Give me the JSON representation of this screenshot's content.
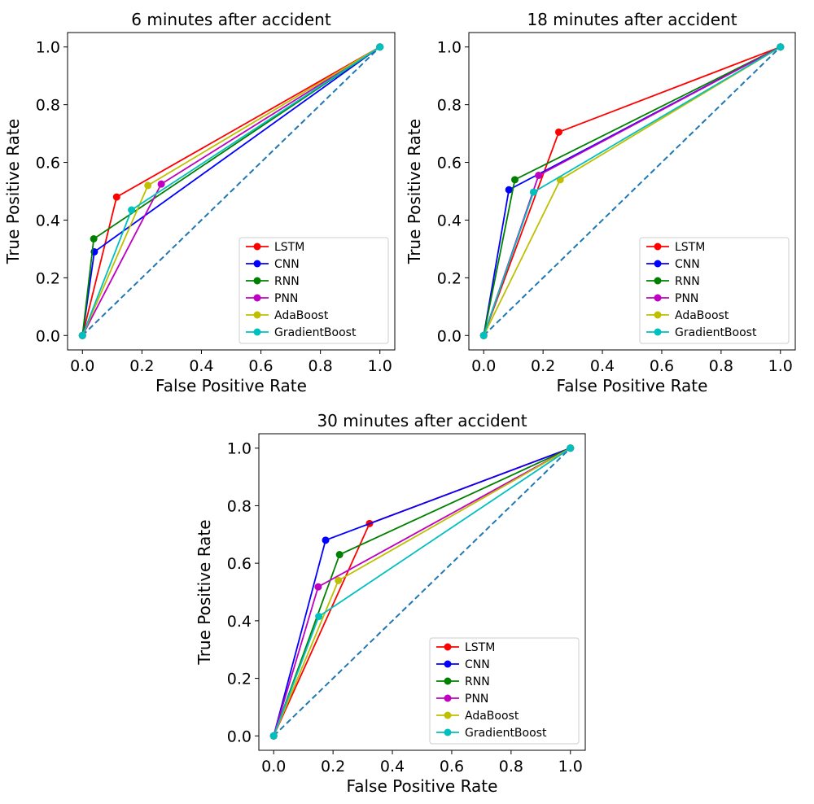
{
  "figure": {
    "background": "#ffffff"
  },
  "chart_data": [
    {
      "type": "line",
      "title": "6 minutes after accident",
      "xlabel": "False Positive Rate",
      "ylabel": "True Positive Rate",
      "xlim": [
        -0.05,
        1.05
      ],
      "ylim": [
        -0.05,
        1.05
      ],
      "xticks": [
        "0.0",
        "0.2",
        "0.4",
        "0.6",
        "0.8",
        "1.0"
      ],
      "yticks": [
        "0.0",
        "0.2",
        "0.4",
        "0.6",
        "0.8",
        "1.0"
      ],
      "legend_position": "lower-right",
      "diagonal": {
        "x": [
          0,
          1
        ],
        "y": [
          0,
          1
        ],
        "style": "dashed",
        "color": "#1f77b4"
      },
      "series": [
        {
          "name": "LSTM",
          "color": "#ff0000",
          "x": [
            0,
            0.115,
            1
          ],
          "y": [
            0,
            0.48,
            1
          ]
        },
        {
          "name": "CNN",
          "color": "#0000ff",
          "x": [
            0,
            0.04,
            1
          ],
          "y": [
            0,
            0.29,
            1
          ]
        },
        {
          "name": "RNN",
          "color": "#008000",
          "x": [
            0,
            0.038,
            1
          ],
          "y": [
            0,
            0.335,
            1
          ]
        },
        {
          "name": "PNN",
          "color": "#bf00bf",
          "x": [
            0,
            0.265,
            1
          ],
          "y": [
            0,
            0.525,
            1
          ]
        },
        {
          "name": "AdaBoost",
          "color": "#bfbf00",
          "x": [
            0,
            0.22,
            1
          ],
          "y": [
            0,
            0.52,
            1
          ]
        },
        {
          "name": "GradientBoost",
          "color": "#00bfbf",
          "x": [
            0,
            0.165,
            1
          ],
          "y": [
            0,
            0.435,
            1
          ]
        }
      ]
    },
    {
      "type": "line",
      "title": "18 minutes after accident",
      "xlabel": "False Positive Rate",
      "ylabel": "True Positive Rate",
      "xlim": [
        -0.05,
        1.05
      ],
      "ylim": [
        -0.05,
        1.05
      ],
      "xticks": [
        "0.0",
        "0.2",
        "0.4",
        "0.6",
        "0.8",
        "1.0"
      ],
      "yticks": [
        "0.0",
        "0.2",
        "0.4",
        "0.6",
        "0.8",
        "1.0"
      ],
      "legend_position": "lower-right",
      "diagonal": {
        "x": [
          0,
          1
        ],
        "y": [
          0,
          1
        ],
        "style": "dashed",
        "color": "#1f77b4"
      },
      "series": [
        {
          "name": "LSTM",
          "color": "#ff0000",
          "x": [
            0,
            0.253,
            1
          ],
          "y": [
            0,
            0.705,
            1
          ]
        },
        {
          "name": "CNN",
          "color": "#0000ff",
          "x": [
            0,
            0.085,
            1
          ],
          "y": [
            0,
            0.505,
            1
          ]
        },
        {
          "name": "RNN",
          "color": "#008000",
          "x": [
            0,
            0.105,
            1
          ],
          "y": [
            0,
            0.54,
            1
          ]
        },
        {
          "name": "PNN",
          "color": "#bf00bf",
          "x": [
            0,
            0.185,
            1
          ],
          "y": [
            0,
            0.555,
            1
          ]
        },
        {
          "name": "AdaBoost",
          "color": "#bfbf00",
          "x": [
            0,
            0.258,
            1
          ],
          "y": [
            0,
            0.54,
            1
          ]
        },
        {
          "name": "GradientBoost",
          "color": "#00bfbf",
          "x": [
            0,
            0.168,
            1
          ],
          "y": [
            0,
            0.497,
            1
          ]
        }
      ]
    },
    {
      "type": "line",
      "title": "30 minutes after accident",
      "xlabel": "False Positive Rate",
      "ylabel": "True Positive Rate",
      "xlim": [
        -0.05,
        1.05
      ],
      "ylim": [
        -0.05,
        1.05
      ],
      "xticks": [
        "0.0",
        "0.2",
        "0.4",
        "0.6",
        "0.8",
        "1.0"
      ],
      "yticks": [
        "0.0",
        "0.2",
        "0.4",
        "0.6",
        "0.8",
        "1.0"
      ],
      "legend_position": "lower-right",
      "diagonal": {
        "x": [
          0,
          1
        ],
        "y": [
          0,
          1
        ],
        "style": "dashed",
        "color": "#1f77b4"
      },
      "series": [
        {
          "name": "LSTM",
          "color": "#ff0000",
          "x": [
            0,
            0.323,
            1
          ],
          "y": [
            0,
            0.738,
            1
          ]
        },
        {
          "name": "CNN",
          "color": "#0000ff",
          "x": [
            0,
            0.175,
            1
          ],
          "y": [
            0,
            0.68,
            1
          ]
        },
        {
          "name": "RNN",
          "color": "#008000",
          "x": [
            0,
            0.222,
            1
          ],
          "y": [
            0,
            0.63,
            1
          ]
        },
        {
          "name": "PNN",
          "color": "#bf00bf",
          "x": [
            0,
            0.15,
            1
          ],
          "y": [
            0,
            0.518,
            1
          ]
        },
        {
          "name": "AdaBoost",
          "color": "#bfbf00",
          "x": [
            0,
            0.218,
            1
          ],
          "y": [
            0,
            0.54,
            1
          ]
        },
        {
          "name": "GradientBoost",
          "color": "#00bfbf",
          "x": [
            0,
            0.152,
            1
          ],
          "y": [
            0,
            0.415,
            1
          ]
        }
      ]
    }
  ]
}
